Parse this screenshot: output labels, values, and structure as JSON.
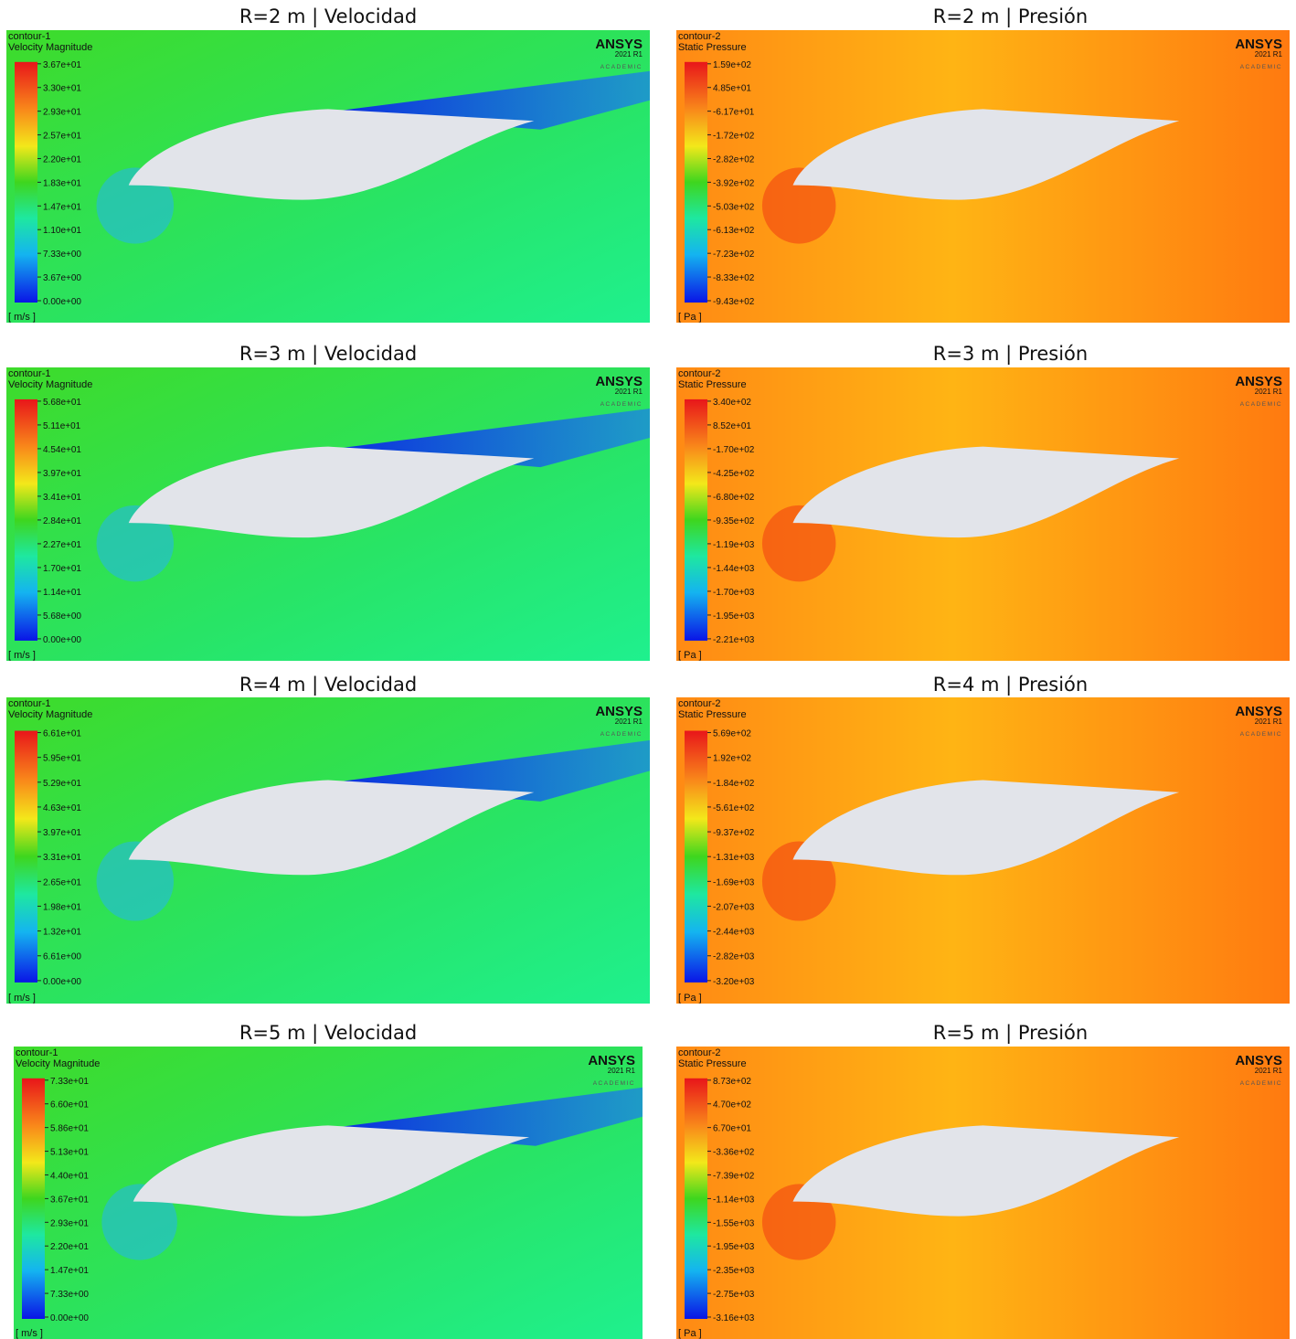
{
  "panels": [
    {
      "title": "R=2 m | Velocidad",
      "contour": "contour-1",
      "variable": "Velocity Magnitude",
      "levels": [
        "3.67e+01",
        "3.30e+01",
        "2.93e+01",
        "2.57e+01",
        "2.20e+01",
        "1.83e+01",
        "1.47e+01",
        "1.10e+01",
        "7.33e+00",
        "3.67e+00",
        "0.00e+00"
      ],
      "unit": "[ m/s ]"
    },
    {
      "title": "R=2 m | Presión",
      "contour": "contour-2",
      "variable": "Static Pressure",
      "levels": [
        "1.59e+02",
        "4.85e+01",
        "-6.17e+01",
        "-1.72e+02",
        "-2.82e+02",
        "-3.92e+02",
        "-5.03e+02",
        "-6.13e+02",
        "-7.23e+02",
        "-8.33e+02",
        "-9.43e+02"
      ],
      "unit": "[ Pa ]"
    },
    {
      "title": "R=3 m | Velocidad",
      "contour": "contour-1",
      "variable": "Velocity Magnitude",
      "levels": [
        "5.68e+01",
        "5.11e+01",
        "4.54e+01",
        "3.97e+01",
        "3.41e+01",
        "2.84e+01",
        "2.27e+01",
        "1.70e+01",
        "1.14e+01",
        "5.68e+00",
        "0.00e+00"
      ],
      "unit": "[ m/s ]"
    },
    {
      "title": "R=3 m | Presión",
      "contour": "contour-2",
      "variable": "Static Pressure",
      "levels": [
        "3.40e+02",
        "8.52e+01",
        "-1.70e+02",
        "-4.25e+02",
        "-6.80e+02",
        "-9.35e+02",
        "-1.19e+03",
        "-1.44e+03",
        "-1.70e+03",
        "-1.95e+03",
        "-2.21e+03"
      ],
      "unit": "[ Pa ]"
    },
    {
      "title": "R=4 m | Velocidad",
      "contour": "contour-1",
      "variable": "Velocity Magnitude",
      "levels": [
        "6.61e+01",
        "5.95e+01",
        "5.29e+01",
        "4.63e+01",
        "3.97e+01",
        "3.31e+01",
        "2.65e+01",
        "1.98e+01",
        "1.32e+01",
        "6.61e+00",
        "0.00e+00"
      ],
      "unit": "[ m/s ]"
    },
    {
      "title": "R=4 m | Presión",
      "contour": "contour-2",
      "variable": "Static Pressure",
      "levels": [
        "5.69e+02",
        "1.92e+02",
        "-1.84e+02",
        "-5.61e+02",
        "-9.37e+02",
        "-1.31e+03",
        "-1.69e+03",
        "-2.07e+03",
        "-2.44e+03",
        "-2.82e+03",
        "-3.20e+03"
      ],
      "unit": "[ Pa ]"
    },
    {
      "title": "R=5 m | Velocidad",
      "contour": "contour-1",
      "variable": "Velocity Magnitude",
      "levels": [
        "7.33e+01",
        "6.60e+01",
        "5.86e+01",
        "5.13e+01",
        "4.40e+01",
        "3.67e+01",
        "2.93e+01",
        "2.20e+01",
        "1.47e+01",
        "7.33e+00",
        "0.00e+00"
      ],
      "unit": "[ m/s ]"
    },
    {
      "title": "R=5 m | Presión",
      "contour": "contour-2",
      "variable": "Static Pressure",
      "levels": [
        "8.73e+02",
        "4.70e+02",
        "6.70e+01",
        "-3.36e+02",
        "-7.39e+02",
        "-1.14e+03",
        "-1.55e+03",
        "-1.95e+03",
        "-2.35e+03",
        "-2.75e+03",
        "-3.16e+03"
      ],
      "unit": "[ Pa ]"
    }
  ],
  "logo": {
    "brand": "ANSYS",
    "version": "2021 R1",
    "edition": "ACADEMIC"
  }
}
